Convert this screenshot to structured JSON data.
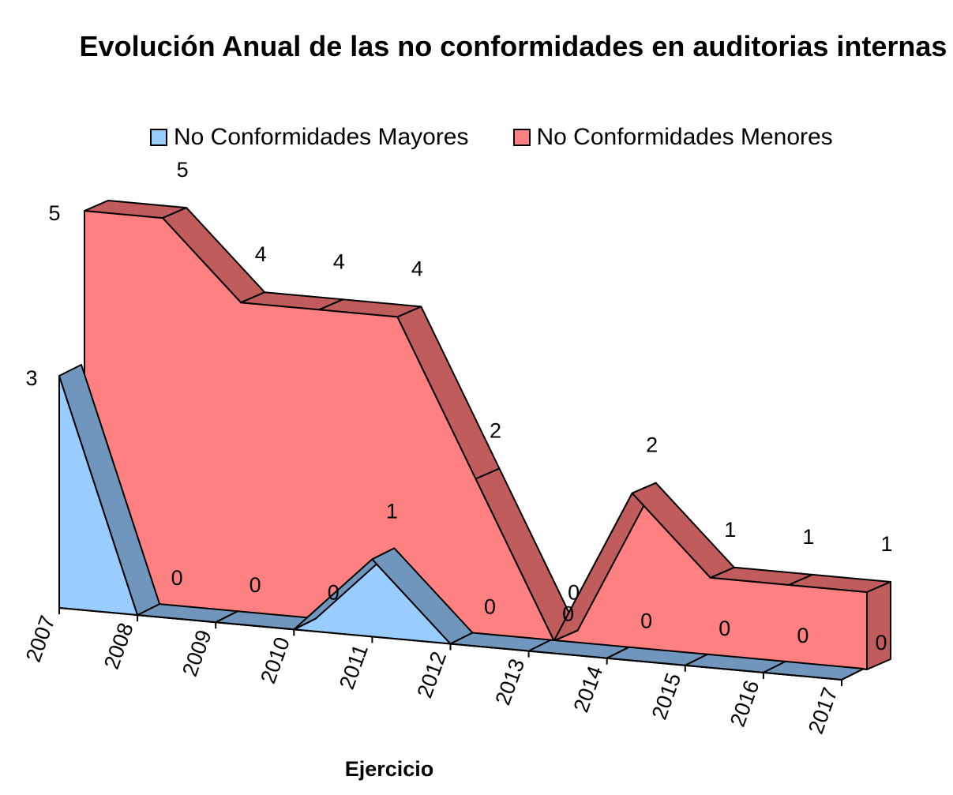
{
  "chart_data": {
    "type": "area",
    "title": "Evolución Anual de las no conformidades en auditorias internas",
    "xlabel": "Ejercicio",
    "ylabel": "",
    "categories": [
      "2007",
      "2008",
      "2009",
      "2010",
      "2011",
      "2012",
      "2013",
      "2014",
      "2015",
      "2016",
      "2017"
    ],
    "series": [
      {
        "name": "No Conformidades Mayores",
        "values": [
          3,
          0,
          0,
          0,
          1,
          0,
          0,
          0,
          0,
          0,
          0
        ],
        "color": "#99CCFF",
        "side_color": "#7096BE"
      },
      {
        "name": "No Conformidades Menores",
        "values": [
          5,
          5,
          4,
          4,
          4,
          2,
          0,
          2,
          1,
          1,
          1
        ],
        "color": "#FF8080",
        "side_color": "#C05C5C"
      }
    ],
    "ylim": [
      0,
      5
    ],
    "three_d": true,
    "legend_position": "top",
    "grid": false
  }
}
